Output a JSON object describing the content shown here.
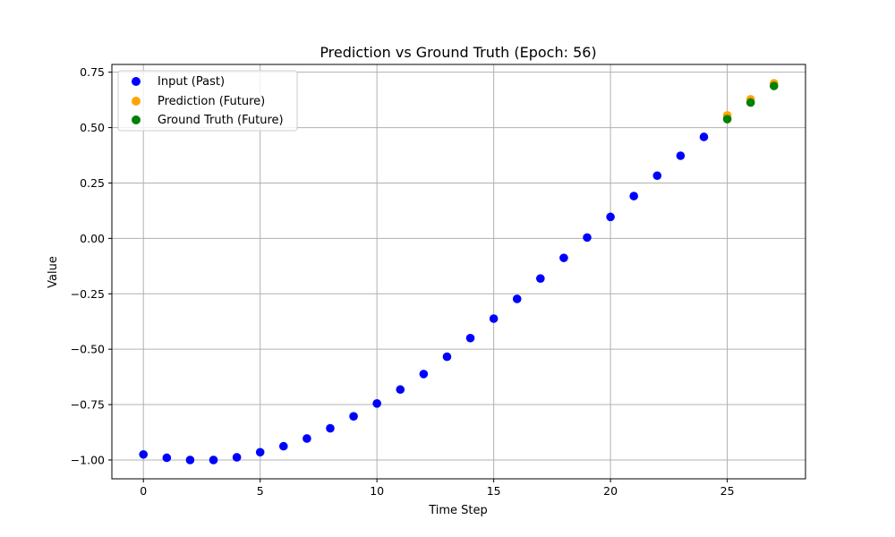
{
  "chart_data": {
    "type": "scatter",
    "title": "Prediction vs Ground Truth (Epoch: 56)",
    "xlabel": "Time Step",
    "ylabel": "Value",
    "xlim": [
      -1.35,
      28.35
    ],
    "ylim": [
      -1.085,
      0.785
    ],
    "xticks": [
      0,
      5,
      10,
      15,
      20,
      25
    ],
    "xtick_labels": [
      "0",
      "5",
      "10",
      "15",
      "20",
      "25"
    ],
    "yticks": [
      -1.0,
      -0.75,
      -0.5,
      -0.25,
      0.0,
      0.25,
      0.5,
      0.75
    ],
    "ytick_labels": [
      "−1.00",
      "−0.75",
      "−0.50",
      "−0.25",
      "0.00",
      "0.25",
      "0.50",
      "0.75"
    ],
    "grid": true,
    "legend_position": "top-left",
    "series": [
      {
        "name": "Input (Past)",
        "color": "#0000ff",
        "x": [
          0,
          1,
          2,
          3,
          4,
          5,
          6,
          7,
          8,
          9,
          10,
          11,
          12,
          13,
          14,
          15,
          16,
          17,
          18,
          19,
          20,
          21,
          22,
          23,
          24
        ],
        "y": [
          -0.975,
          -0.99,
          -1.0,
          -1.0,
          -0.988,
          -0.965,
          -0.938,
          -0.903,
          -0.857,
          -0.803,
          -0.745,
          -0.682,
          -0.612,
          -0.534,
          -0.45,
          -0.362,
          -0.273,
          -0.181,
          -0.088,
          0.004,
          0.097,
          0.191,
          0.283,
          0.373,
          0.458
        ]
      },
      {
        "name": "Prediction (Future)",
        "color": "#ffa500",
        "x": [
          25,
          26,
          27
        ],
        "y": [
          0.555,
          0.628,
          0.7
        ]
      },
      {
        "name": "Ground Truth (Future)",
        "color": "#008000",
        "x": [
          25,
          26,
          27
        ],
        "y": [
          0.538,
          0.613,
          0.688
        ]
      }
    ]
  }
}
